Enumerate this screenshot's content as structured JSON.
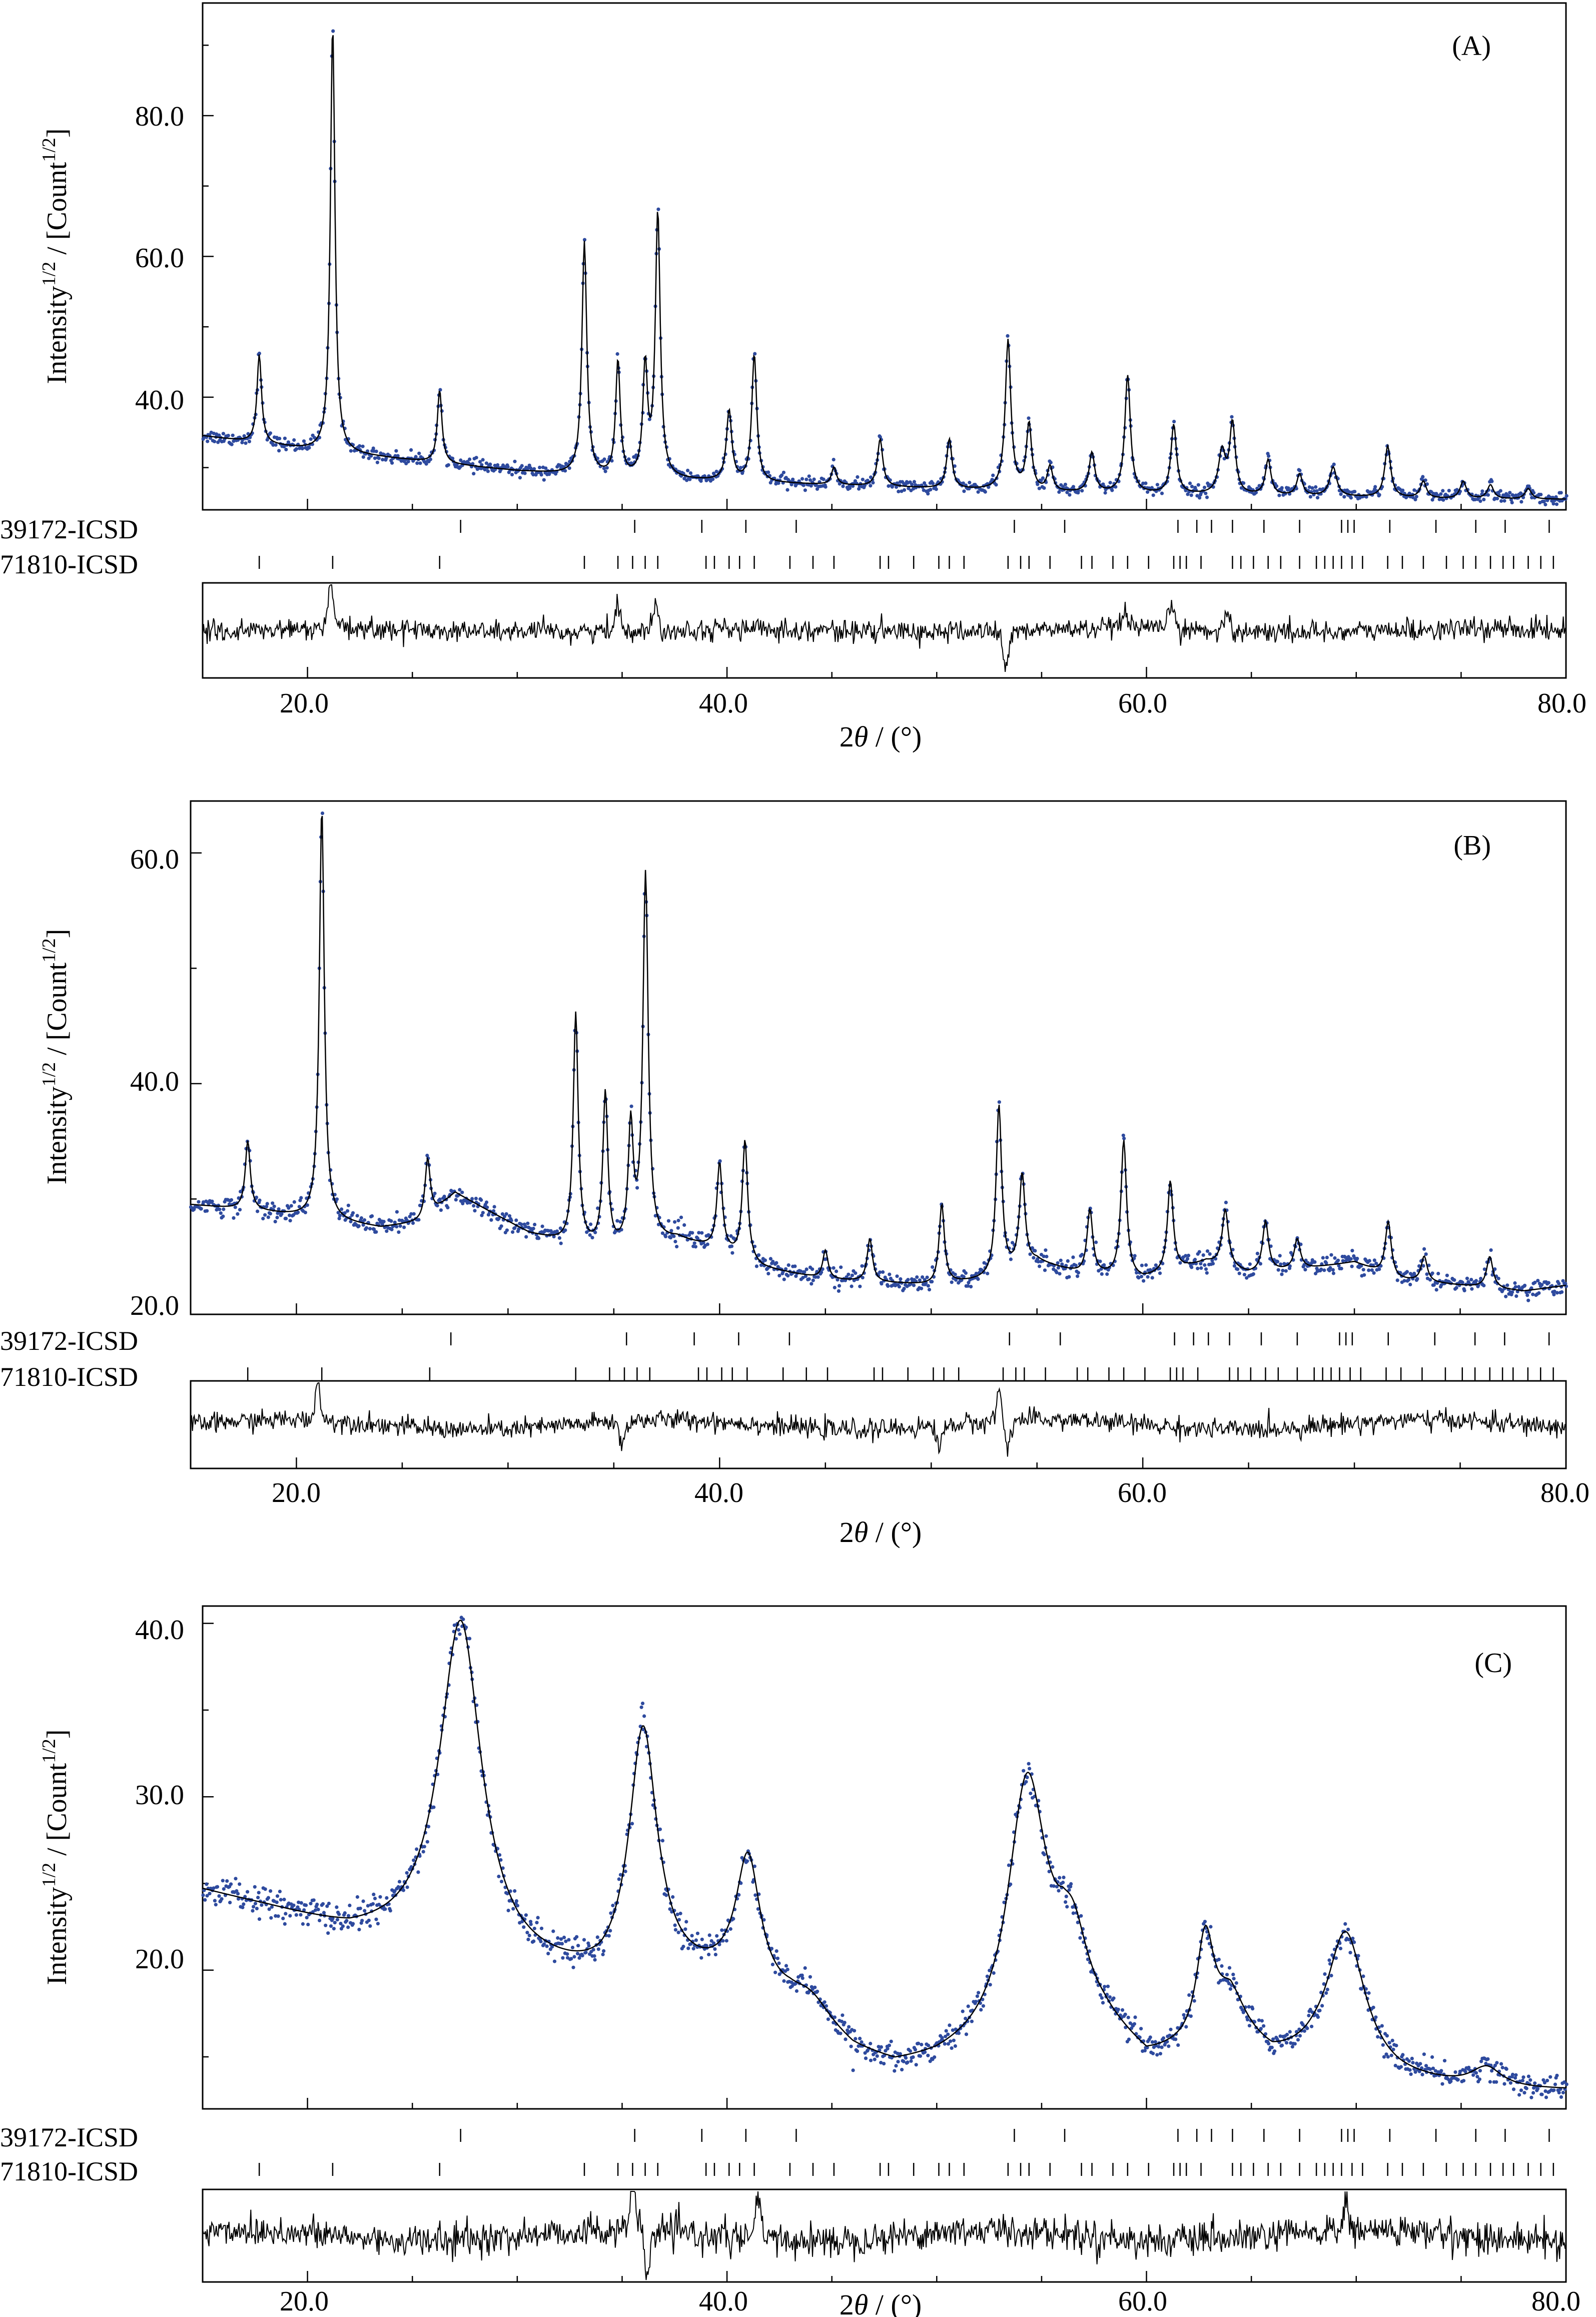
{
  "figure": {
    "panels": [
      {
        "label": "(A)"
      },
      {
        "label": "(B)"
      },
      {
        "label": "(C)"
      }
    ],
    "x_axis_label": {
      "prefix": "2",
      "theta": "θ",
      "suffix": " / (°)"
    },
    "y_axis_label": {
      "base": "Intensity",
      "sup1": "1/2",
      "mid": " / [Count",
      "sup2": "1/2",
      "end": "]"
    },
    "reflection_labels": [
      "39172-ICSD",
      "71810-ICSD"
    ]
  },
  "colors": {
    "observed": "#2e4a9e",
    "calculated": "#000000",
    "difference": "#000000",
    "ticks": "#000000"
  },
  "chart_data": [
    {
      "type": "scatter",
      "title": "(A)",
      "xlabel": "2θ / (°)",
      "ylabel": "Intensity^1/2 / [Count^1/2]",
      "xlim": [
        15,
        80
      ],
      "ylim": [
        24,
        96
      ],
      "x_ticks": [
        20,
        40,
        60,
        80
      ],
      "x_tick_labels": [
        "20.0",
        "40.0",
        "60.0",
        "80.0"
      ],
      "y_ticks": [
        40,
        60,
        80
      ],
      "y_tick_labels": [
        "40.0",
        "60.0",
        "80.0"
      ],
      "series": [
        {
          "role": "observed",
          "style": "points"
        },
        {
          "role": "calculated",
          "style": "line"
        },
        {
          "role": "difference",
          "style": "line"
        }
      ],
      "background": [
        [
          15,
          34.5
        ],
        [
          20,
          32.5
        ],
        [
          25,
          31
        ],
        [
          30,
          29.5
        ],
        [
          35,
          28.5
        ],
        [
          40,
          28
        ],
        [
          45,
          27.5
        ],
        [
          50,
          27
        ],
        [
          55,
          26.5
        ],
        [
          60,
          26.2
        ],
        [
          65,
          26
        ],
        [
          70,
          25.8
        ],
        [
          75,
          25.5
        ],
        [
          80,
          25.5
        ]
      ],
      "peaks": [
        [
          17.7,
          46,
          0.13
        ],
        [
          21.2,
          93,
          0.13
        ],
        [
          26.3,
          41,
          0.13
        ],
        [
          33.2,
          62,
          0.14
        ],
        [
          34.8,
          45,
          0.13
        ],
        [
          36.1,
          44,
          0.13
        ],
        [
          36.7,
          66,
          0.14
        ],
        [
          40.1,
          38,
          0.15
        ],
        [
          41.3,
          46,
          0.14
        ],
        [
          45.1,
          30,
          0.14
        ],
        [
          47.3,
          34,
          0.15
        ],
        [
          50.6,
          34,
          0.15
        ],
        [
          53.4,
          48,
          0.16
        ],
        [
          54.4,
          36,
          0.15
        ],
        [
          55.4,
          30,
          0.15
        ],
        [
          57.4,
          32,
          0.16
        ],
        [
          59.1,
          43,
          0.16
        ],
        [
          61.3,
          36,
          0.16
        ],
        [
          63.6,
          32,
          0.2
        ],
        [
          64.1,
          36,
          0.16
        ],
        [
          65.8,
          31,
          0.16
        ],
        [
          67.3,
          29,
          0.16
        ],
        [
          68.9,
          30,
          0.2
        ],
        [
          71.5,
          33,
          0.17
        ],
        [
          73.2,
          28,
          0.17
        ],
        [
          75.1,
          28,
          0.18
        ],
        [
          76.4,
          27.5,
          0.18
        ],
        [
          78.2,
          27,
          0.18
        ]
      ],
      "reflections": [
        {
          "name": "39172-ICSD",
          "positions": [
            27.3,
            35.6,
            38.8,
            40.9,
            43.3,
            53.7,
            56.1,
            61.5,
            62.4,
            63.1,
            64.1,
            65.6,
            67.3,
            69.3,
            69.6,
            69.9,
            71.6,
            73.8,
            75.7,
            77.1,
            79.2
          ]
        },
        {
          "name": "71810-ICSD",
          "positions": [
            17.7,
            21.2,
            26.3,
            33.2,
            34.8,
            35.5,
            36.1,
            36.7,
            39.0,
            39.4,
            40.1,
            40.6,
            41.3,
            43.0,
            44.1,
            45.1,
            47.3,
            47.7,
            48.9,
            50.1,
            50.6,
            51.3,
            53.4,
            54.0,
            54.4,
            55.4,
            56.9,
            57.4,
            58.4,
            59.1,
            60.1,
            61.3,
            61.6,
            61.9,
            62.6,
            64.1,
            64.5,
            65.1,
            65.8,
            66.4,
            67.3,
            68.1,
            68.5,
            68.9,
            69.3,
            69.8,
            70.3,
            71.5,
            72.2,
            73.2,
            74.3,
            75.1,
            75.7,
            76.4,
            77.0,
            77.5,
            78.2,
            78.8,
            79.4
          ]
        }
      ],
      "diff_spikes": [
        [
          21.1,
          1.0
        ],
        [
          34.8,
          0.6
        ],
        [
          36.6,
          0.5
        ],
        [
          53.3,
          -0.9
        ],
        [
          59.0,
          0.4
        ],
        [
          61.2,
          0.6
        ],
        [
          63.8,
          0.4
        ]
      ]
    },
    {
      "type": "scatter",
      "title": "(B)",
      "xlabel": "2θ / (°)",
      "ylabel": "Intensity^1/2 / [Count^1/2]",
      "xlim": [
        15,
        80
      ],
      "ylim": [
        20,
        64.5
      ],
      "x_ticks": [
        20,
        40,
        60,
        80
      ],
      "x_tick_labels": [
        "20.0",
        "40.0",
        "60.0",
        "80.0"
      ],
      "y_ticks": [
        20,
        40,
        60
      ],
      "y_tick_labels": [
        "20.0",
        "40.0",
        "60.0"
      ],
      "series": [
        {
          "role": "observed",
          "style": "points"
        },
        {
          "role": "calculated",
          "style": "line"
        },
        {
          "role": "difference",
          "style": "line"
        }
      ],
      "background": [
        [
          15,
          29.5
        ],
        [
          18,
          29
        ],
        [
          20,
          28.5
        ],
        [
          24,
          27.5
        ],
        [
          26,
          28
        ],
        [
          27.5,
          30.5
        ],
        [
          29,
          29
        ],
        [
          31,
          27
        ],
        [
          33,
          26
        ],
        [
          35,
          25.5
        ],
        [
          38,
          26.5
        ],
        [
          40,
          25.5
        ],
        [
          42,
          24
        ],
        [
          45,
          23
        ],
        [
          50,
          22.5
        ],
        [
          53,
          23
        ],
        [
          55,
          24.5
        ],
        [
          57,
          23.5
        ],
        [
          60,
          23
        ],
        [
          63,
          24.5
        ],
        [
          65,
          23.5
        ],
        [
          68,
          24
        ],
        [
          70,
          24.5
        ],
        [
          72,
          23
        ],
        [
          75,
          22.5
        ],
        [
          78,
          22
        ],
        [
          80,
          22.5
        ]
      ],
      "peaks": [
        [
          17.7,
          35,
          0.14
        ],
        [
          21.2,
          64,
          0.14
        ],
        [
          26.2,
          33.5,
          0.15
        ],
        [
          33.2,
          46,
          0.14
        ],
        [
          34.6,
          39,
          0.14
        ],
        [
          35.8,
          36,
          0.14
        ],
        [
          36.5,
          58,
          0.15
        ],
        [
          40.0,
          33,
          0.15
        ],
        [
          41.2,
          35,
          0.15
        ],
        [
          45.0,
          25.5,
          0.15
        ],
        [
          47.1,
          26.5,
          0.15
        ],
        [
          50.5,
          29.5,
          0.15
        ],
        [
          53.2,
          38,
          0.16
        ],
        [
          54.3,
          32,
          0.16
        ],
        [
          57.5,
          29,
          0.16
        ],
        [
          59.1,
          35,
          0.16
        ],
        [
          61.3,
          31.5,
          0.16
        ],
        [
          63.9,
          29,
          0.18
        ],
        [
          65.8,
          28,
          0.17
        ],
        [
          67.3,
          26.5,
          0.17
        ],
        [
          71.6,
          28,
          0.17
        ],
        [
          73.3,
          25,
          0.17
        ],
        [
          76.4,
          25,
          0.18
        ]
      ],
      "reflections": [
        {
          "name": "39172-ICSD",
          "positions": [
            27.3,
            35.6,
            38.8,
            40.9,
            43.3,
            53.7,
            56.1,
            61.5,
            62.4,
            63.1,
            64.1,
            65.6,
            67.3,
            69.3,
            69.6,
            69.9,
            71.6,
            73.8,
            75.7,
            77.1,
            79.2
          ]
        },
        {
          "name": "71810-ICSD",
          "positions": [
            17.7,
            21.2,
            26.3,
            33.2,
            34.8,
            35.5,
            36.1,
            36.7,
            39.0,
            39.4,
            40.1,
            40.6,
            41.3,
            43.0,
            44.1,
            45.1,
            47.3,
            47.7,
            48.9,
            50.1,
            50.6,
            51.3,
            53.4,
            54.0,
            54.4,
            55.4,
            56.9,
            57.4,
            58.4,
            59.1,
            60.1,
            61.3,
            61.6,
            61.9,
            62.6,
            64.1,
            64.5,
            65.1,
            65.8,
            66.4,
            67.3,
            68.1,
            68.5,
            68.9,
            69.3,
            69.8,
            70.3,
            71.5,
            72.2,
            73.2,
            74.3,
            75.1,
            75.7,
            76.4,
            77.0,
            77.5,
            78.2,
            78.8,
            79.4
          ]
        }
      ],
      "diff_spikes": [
        [
          21.0,
          0.9
        ],
        [
          35.4,
          -0.6
        ],
        [
          50.4,
          -0.5
        ],
        [
          53.2,
          0.7
        ],
        [
          53.6,
          -0.6
        ]
      ]
    },
    {
      "type": "scatter",
      "title": "(C)",
      "xlabel": "2θ / (°)",
      "ylabel": "Intensity^1/2 / [Count^1/2]",
      "xlim": [
        15,
        80
      ],
      "ylim": [
        12,
        41
      ],
      "x_ticks": [
        20,
        40,
        60,
        80
      ],
      "x_tick_labels": [
        "20.0",
        "40.0",
        "60.0",
        "80.0"
      ],
      "y_ticks": [
        20,
        30,
        40
      ],
      "y_tick_labels": [
        "20.0",
        "30.0",
        "40.0"
      ],
      "series": [
        {
          "role": "observed",
          "style": "points"
        },
        {
          "role": "calculated",
          "style": "line"
        },
        {
          "role": "difference",
          "style": "line"
        }
      ],
      "background": [
        [
          15,
          24.5
        ],
        [
          18,
          23.5
        ],
        [
          22,
          22
        ],
        [
          26,
          21.5
        ],
        [
          30,
          20
        ],
        [
          34,
          19
        ],
        [
          37,
          19.5
        ],
        [
          40,
          19
        ],
        [
          43,
          17.5
        ],
        [
          46,
          15
        ],
        [
          48,
          14.2
        ],
        [
          50,
          14.5
        ],
        [
          53,
          15.5
        ],
        [
          56,
          18
        ],
        [
          58,
          16.5
        ],
        [
          60,
          14.5
        ],
        [
          62,
          15
        ],
        [
          64,
          16
        ],
        [
          66,
          14.5
        ],
        [
          68,
          14.5
        ],
        [
          72,
          13.5
        ],
        [
          76,
          13
        ],
        [
          80,
          13
        ]
      ],
      "peaks": [
        [
          27.3,
          40,
          1.2
        ],
        [
          36.0,
          33.5,
          0.8
        ],
        [
          41.0,
          26,
          0.7
        ],
        [
          44.0,
          18,
          1.2
        ],
        [
          54.3,
          30.8,
          1.1
        ],
        [
          56.5,
          21,
          0.8
        ],
        [
          62.8,
          21.3,
          0.5
        ],
        [
          64.0,
          18,
          0.9
        ],
        [
          69.5,
          22,
          1.1
        ],
        [
          76.2,
          14.2,
          0.9
        ]
      ],
      "reflections": [
        {
          "name": "39172-ICSD",
          "positions": [
            27.3,
            35.6,
            38.8,
            40.9,
            43.3,
            53.7,
            56.1,
            61.5,
            62.4,
            63.1,
            64.1,
            65.6,
            67.3,
            69.3,
            69.6,
            69.9,
            71.6,
            73.8,
            75.7,
            77.1,
            79.2
          ]
        },
        {
          "name": "71810-ICSD",
          "positions": [
            17.7,
            21.2,
            26.3,
            33.2,
            34.8,
            35.5,
            36.1,
            36.7,
            39.0,
            39.4,
            40.1,
            40.6,
            41.3,
            43.0,
            44.1,
            45.1,
            47.3,
            47.7,
            48.9,
            50.1,
            50.6,
            51.3,
            53.4,
            54.0,
            54.4,
            55.4,
            56.9,
            57.4,
            58.4,
            59.1,
            60.1,
            61.3,
            61.6,
            61.9,
            62.6,
            64.1,
            64.5,
            65.1,
            65.8,
            66.4,
            67.3,
            68.1,
            68.5,
            68.9,
            69.3,
            69.8,
            70.3,
            71.5,
            72.2,
            73.2,
            74.3,
            75.1,
            75.7,
            76.4,
            77.0,
            77.5,
            78.2,
            78.8,
            79.4
          ]
        }
      ],
      "diff_spikes": [
        [
          35.5,
          1.2
        ],
        [
          36.2,
          -1.0
        ],
        [
          41.5,
          1.0
        ],
        [
          69.5,
          0.6
        ]
      ]
    }
  ]
}
